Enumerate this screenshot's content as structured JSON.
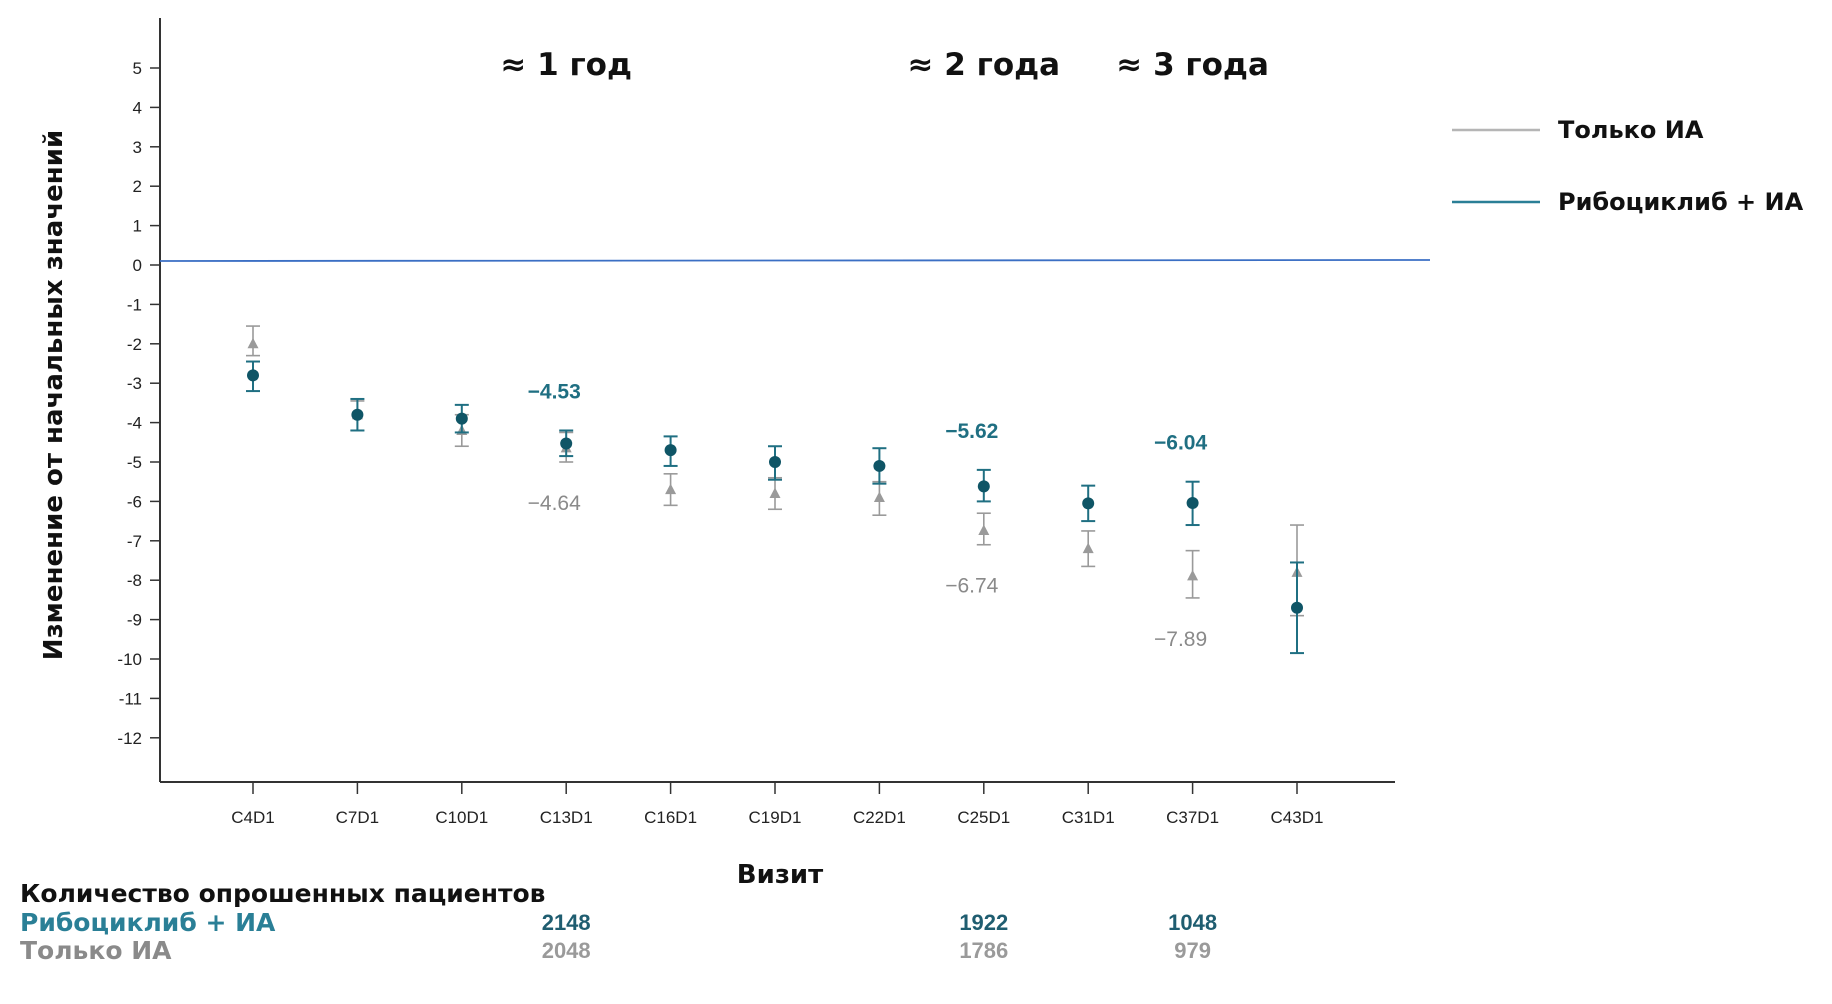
{
  "chart_data": {
    "type": "scatter",
    "title": "",
    "xlabel": "Визит",
    "ylabel": "Изменение от начальных значений",
    "ylim": [
      -12,
      5
    ],
    "y_ticks": [
      "5",
      "4",
      "3",
      "2",
      "1",
      "0",
      "-1",
      "-2",
      "-3",
      "-4",
      "-5",
      "-6",
      "-7",
      "-8",
      "-9",
      "-10",
      "-11",
      "-12"
    ],
    "categories": [
      "C4D1",
      "C7D1",
      "C10D1",
      "C13D1",
      "C16D1",
      "C19D1",
      "C22D1",
      "C25D1",
      "C31D1",
      "C37D1",
      "C43D1"
    ],
    "reference_line": 0,
    "legend_position": "right",
    "series": [
      {
        "name": "Только ИА",
        "color": "#9a9a9a",
        "marker": "triangle",
        "values": [
          -2.0,
          -3.8,
          -4.2,
          -4.64,
          -5.7,
          -5.8,
          -5.9,
          -6.74,
          -7.2,
          -7.89,
          -7.8
        ],
        "err_low": [
          -2.3,
          -4.2,
          -4.6,
          -5.0,
          -6.1,
          -6.2,
          -6.35,
          -7.1,
          -7.65,
          -8.45,
          -8.9
        ],
        "err_high": [
          -1.55,
          -3.45,
          -3.8,
          -4.25,
          -5.3,
          -5.4,
          -5.5,
          -6.3,
          -6.75,
          -7.25,
          -6.6
        ]
      },
      {
        "name": "Рибоциклиб + ИА",
        "color": "#1f6f82",
        "marker": "circle",
        "values": [
          -2.8,
          -3.8,
          -3.9,
          -4.53,
          -4.7,
          -5.0,
          -5.1,
          -5.62,
          -6.05,
          -6.04,
          -8.7
        ],
        "err_low": [
          -3.2,
          -4.2,
          -4.25,
          -4.85,
          -5.1,
          -5.45,
          -5.55,
          -6.0,
          -6.5,
          -6.6,
          -9.85
        ],
        "err_high": [
          -2.45,
          -3.4,
          -3.55,
          -4.2,
          -4.35,
          -4.6,
          -4.65,
          -5.2,
          -5.6,
          -5.5,
          -7.55
        ]
      }
    ],
    "period_labels": [
      {
        "text": "≈ 1 год",
        "at": "C13D1"
      },
      {
        "text": "≈ 2 года",
        "at": "C25D1"
      },
      {
        "text": "≈ 3 года",
        "at": "C37D1"
      }
    ],
    "annotations": [
      {
        "text": "−4.53",
        "series": "Рибоциклиб + ИА",
        "at": "C13D1",
        "side": "above"
      },
      {
        "text": "−4.64",
        "series": "Только ИА",
        "at": "C13D1",
        "side": "below"
      },
      {
        "text": "−5.62",
        "series": "Рибоциклиб + ИА",
        "at": "C25D1",
        "side": "above"
      },
      {
        "text": "−6.74",
        "series": "Только ИА",
        "at": "C25D1",
        "side": "below"
      },
      {
        "text": "−6.04",
        "series": "Рибоциклиб + ИА",
        "at": "C37D1",
        "side": "above"
      },
      {
        "text": "−7.89",
        "series": "Только ИА",
        "at": "C37D1",
        "side": "below"
      }
    ]
  },
  "patients_table": {
    "heading": "Количество опрошенных пациентов",
    "rows": [
      {
        "label": "Рибоциклиб + ИА",
        "color": "#1f6f82",
        "values": [
          {
            "at": "C13D1",
            "text": "2148"
          },
          {
            "at": "C25D1",
            "text": "1922"
          },
          {
            "at": "C37D1",
            "text": "1048"
          }
        ]
      },
      {
        "label": "Только ИА",
        "color": "#8a8a8a",
        "values": [
          {
            "at": "C13D1",
            "text": "2048"
          },
          {
            "at": "C25D1",
            "text": "1786"
          },
          {
            "at": "C37D1",
            "text": "979"
          }
        ]
      }
    ]
  }
}
